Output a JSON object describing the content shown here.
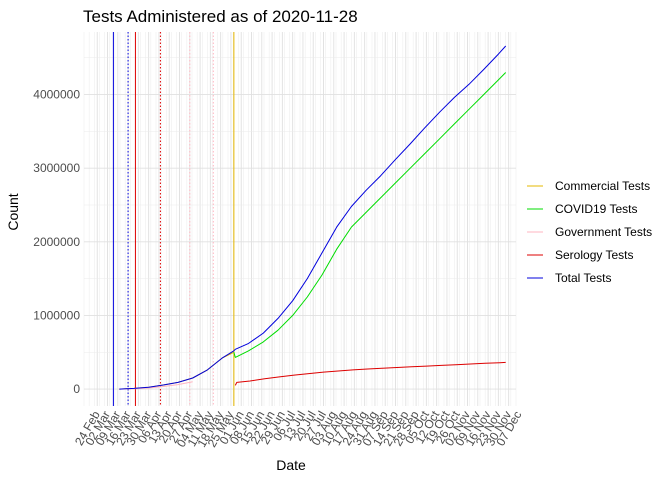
{
  "chart_data": {
    "type": "line",
    "title": "Tests Administered as of 2020-11-28",
    "xlabel": "Date",
    "ylabel": "Count",
    "x_range": [
      "2020-02-15",
      "2020-12-05"
    ],
    "ylim": [
      -230000,
      4850000
    ],
    "y_ticks": [
      0,
      1000000,
      2000000,
      3000000,
      4000000
    ],
    "y_tick_labels": [
      "0",
      "1000000",
      "2000000",
      "3000000",
      "4000000"
    ],
    "x_tick_dates": [
      "2020-02-24",
      "2020-03-02",
      "2020-03-09",
      "2020-03-16",
      "2020-03-23",
      "2020-03-30",
      "2020-04-06",
      "2020-04-13",
      "2020-04-20",
      "2020-04-27",
      "2020-05-04",
      "2020-05-11",
      "2020-05-18",
      "2020-05-25",
      "2020-06-01",
      "2020-06-08",
      "2020-06-15",
      "2020-06-22",
      "2020-06-29",
      "2020-07-06",
      "2020-07-13",
      "2020-07-20",
      "2020-07-27",
      "2020-08-03",
      "2020-08-10",
      "2020-08-17",
      "2020-08-24",
      "2020-08-31",
      "2020-09-07",
      "2020-09-14",
      "2020-09-21",
      "2020-09-28",
      "2020-10-05",
      "2020-10-12",
      "2020-10-19",
      "2020-10-26",
      "2020-11-02",
      "2020-11-09",
      "2020-11-16",
      "2020-11-23",
      "2020-11-30",
      "2020-12-07"
    ],
    "x_tick_labels": [
      "24 Feb",
      "02 Mar",
      "09 Mar",
      "16 Mar",
      "23 Mar",
      "30 Mar",
      "06 Apr",
      "13 Apr",
      "20 Apr",
      "27 Apr",
      "04 May",
      "11 May",
      "18 May",
      "25 May",
      "01 Jun",
      "08 Jun",
      "15 Jun",
      "22 Jun",
      "29 Jun",
      "06 Jul",
      "13 Jul",
      "20 Jul",
      "27 Jul",
      "03 Aug",
      "10 Aug",
      "17 Aug",
      "24 Aug",
      "31 Aug",
      "07 Sep",
      "14 Sep",
      "21 Sep",
      "28 Sep",
      "05 Oct",
      "12 Oct",
      "19 Oct",
      "26 Oct",
      "02 Nov",
      "09 Nov",
      "16 Nov",
      "23 Nov",
      "30 Nov",
      "07 Dec"
    ],
    "grid": true,
    "legend_position": "right",
    "series": [
      {
        "name": "Commercial Tests",
        "color": "#e6b800",
        "x": [
          "2020-03-10",
          "2020-03-20",
          "2020-03-30",
          "2020-04-09",
          "2020-04-19",
          "2020-04-29",
          "2020-05-09",
          "2020-05-19",
          "2020-05-27"
        ],
        "y": [
          0,
          9000,
          25000,
          55000,
          90000,
          150000,
          260000,
          420000,
          500000
        ]
      },
      {
        "name": "COVID19 Tests",
        "color": "#00dd00",
        "x": [
          "2020-05-27",
          "2020-05-28",
          "2020-06-06",
          "2020-06-16",
          "2020-06-26",
          "2020-07-06",
          "2020-07-16",
          "2020-07-26",
          "2020-08-05",
          "2020-08-15",
          "2020-08-25",
          "2020-09-04",
          "2020-09-14",
          "2020-09-24",
          "2020-10-04",
          "2020-10-14",
          "2020-10-24",
          "2020-11-03",
          "2020-11-13",
          "2020-11-23",
          "2020-11-28"
        ],
        "y": [
          500000,
          430000,
          520000,
          640000,
          800000,
          1000000,
          1250000,
          1550000,
          1900000,
          2200000,
          2400000,
          2600000,
          2800000,
          3000000,
          3200000,
          3400000,
          3600000,
          3800000,
          4000000,
          4200000,
          4300000
        ]
      },
      {
        "name": "Government Tests",
        "color": "#ffb6c1",
        "x": [
          "2020-03-10",
          "2020-03-20",
          "2020-03-30",
          "2020-04-09",
          "2020-04-19",
          "2020-04-29"
        ],
        "y": [
          0,
          5000,
          15000,
          35000,
          60000,
          100000
        ]
      },
      {
        "name": "Serology Tests",
        "color": "#dd0000",
        "x": [
          "2020-05-28",
          "2020-05-29",
          "2020-06-07",
          "2020-06-17",
          "2020-06-27",
          "2020-07-07",
          "2020-07-17",
          "2020-07-27",
          "2020-08-06",
          "2020-08-16",
          "2020-08-26",
          "2020-09-05",
          "2020-09-15",
          "2020-09-25",
          "2020-10-05",
          "2020-10-15",
          "2020-10-25",
          "2020-11-04",
          "2020-11-14",
          "2020-11-24",
          "2020-11-28"
        ],
        "y": [
          50000,
          90000,
          110000,
          140000,
          165000,
          190000,
          210000,
          230000,
          245000,
          260000,
          272000,
          283000,
          293000,
          303000,
          312000,
          321000,
          330000,
          340000,
          350000,
          358000,
          362000
        ]
      },
      {
        "name": "Total Tests",
        "color": "#0000dd",
        "x": [
          "2020-03-10",
          "2020-03-20",
          "2020-03-30",
          "2020-04-09",
          "2020-04-19",
          "2020-04-29",
          "2020-05-09",
          "2020-05-19",
          "2020-05-27",
          "2020-05-28",
          "2020-06-06",
          "2020-06-16",
          "2020-06-26",
          "2020-07-06",
          "2020-07-16",
          "2020-07-26",
          "2020-08-05",
          "2020-08-15",
          "2020-08-25",
          "2020-09-04",
          "2020-09-14",
          "2020-09-24",
          "2020-10-04",
          "2020-10-14",
          "2020-10-24",
          "2020-11-03",
          "2020-11-13",
          "2020-11-23",
          "2020-11-28"
        ],
        "y": [
          0,
          9000,
          25000,
          55000,
          90000,
          150000,
          260000,
          420000,
          520000,
          540000,
          620000,
          760000,
          960000,
          1200000,
          1500000,
          1850000,
          2200000,
          2480000,
          2700000,
          2900000,
          3120000,
          3330000,
          3550000,
          3760000,
          3960000,
          4140000,
          4340000,
          4550000,
          4660000
        ]
      }
    ],
    "vertical_lines": [
      {
        "date": "2020-03-06",
        "color": "#0000dd",
        "style": "solid"
      },
      {
        "date": "2020-03-16",
        "color": "#0000dd",
        "style": "dotted"
      },
      {
        "date": "2020-03-21",
        "color": "#dd0000",
        "style": "solid"
      },
      {
        "date": "2020-04-07",
        "color": "#dd0000",
        "style": "dotted"
      },
      {
        "date": "2020-04-27",
        "color": "#ffb6c1",
        "style": "dotted"
      },
      {
        "date": "2020-05-13",
        "color": "#ffb6c1",
        "style": "dotted"
      },
      {
        "date": "2020-05-27",
        "color": "#e6b800",
        "style": "solid"
      }
    ]
  }
}
